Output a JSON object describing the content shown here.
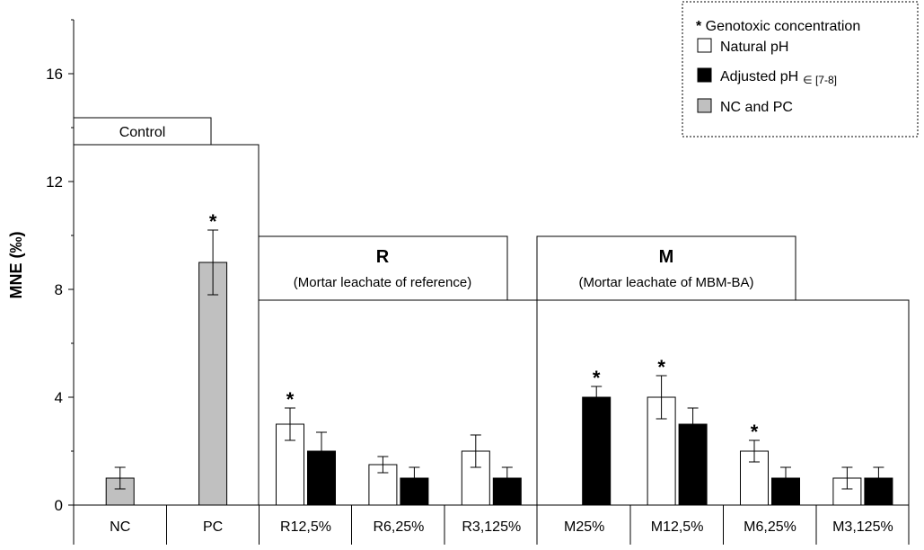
{
  "chart_data": {
    "type": "bar",
    "ylabel": "MNE (‰)",
    "ylim": [
      0,
      18
    ],
    "yticks": [
      0,
      4,
      8,
      12,
      16
    ],
    "grid": false,
    "legend_position": "top-right",
    "legend": {
      "asterisk_label": "Genotoxic concentration",
      "items": [
        {
          "name": "Natural pH",
          "color": "#ffffff",
          "suffix": ""
        },
        {
          "name": "Adjusted pH",
          "color": "#000000",
          "suffix": "∈ [7-8]"
        },
        {
          "name": "NC and PC",
          "color": "#c0c0c0",
          "suffix": ""
        }
      ]
    },
    "categories": [
      "NC",
      "PC",
      "R12,5%",
      "R6,25%",
      "R3,125%",
      "M25%",
      "M12,5%",
      "M6,25%",
      "M3,125%"
    ],
    "groups": [
      {
        "title": "Control",
        "subtitle": ""
      },
      {
        "title": "R",
        "subtitle": "(Mortar leachate of reference)"
      },
      {
        "title": "M",
        "subtitle": "(Mortar leachate of MBM-BA)"
      }
    ],
    "bars": [
      {
        "category": "NC",
        "series": "control",
        "value": 1.0,
        "error": 0.4,
        "genotoxic": false
      },
      {
        "category": "PC",
        "series": "control",
        "value": 9.0,
        "error": 1.2,
        "genotoxic": true
      },
      {
        "category": "R12,5%",
        "series": "natural",
        "value": 3.0,
        "error": 0.6,
        "genotoxic": true
      },
      {
        "category": "R12,5%",
        "series": "adjusted",
        "value": 2.0,
        "error": 0.7,
        "genotoxic": false
      },
      {
        "category": "R6,25%",
        "series": "natural",
        "value": 1.5,
        "error": 0.3,
        "genotoxic": false
      },
      {
        "category": "R6,25%",
        "series": "adjusted",
        "value": 1.0,
        "error": 0.4,
        "genotoxic": false
      },
      {
        "category": "R3,125%",
        "series": "natural",
        "value": 2.0,
        "error": 0.6,
        "genotoxic": false
      },
      {
        "category": "R3,125%",
        "series": "adjusted",
        "value": 1.0,
        "error": 0.4,
        "genotoxic": false
      },
      {
        "category": "M25%",
        "series": "adjusted",
        "value": 4.0,
        "error": 0.4,
        "genotoxic": true
      },
      {
        "category": "M12,5%",
        "series": "natural",
        "value": 4.0,
        "error": 0.8,
        "genotoxic": true
      },
      {
        "category": "M12,5%",
        "series": "adjusted",
        "value": 3.0,
        "error": 0.6,
        "genotoxic": false
      },
      {
        "category": "M6,25%",
        "series": "natural",
        "value": 2.0,
        "error": 0.4,
        "genotoxic": true
      },
      {
        "category": "M6,25%",
        "series": "adjusted",
        "value": 1.0,
        "error": 0.4,
        "genotoxic": false
      },
      {
        "category": "M3,125%",
        "series": "natural",
        "value": 1.0,
        "error": 0.4,
        "genotoxic": false
      },
      {
        "category": "M3,125%",
        "series": "adjusted",
        "value": 1.0,
        "error": 0.4,
        "genotoxic": false
      }
    ],
    "colors": {
      "natural": "#ffffff",
      "adjusted": "#000000",
      "control": "#c0c0c0",
      "stroke": "#000000"
    }
  }
}
